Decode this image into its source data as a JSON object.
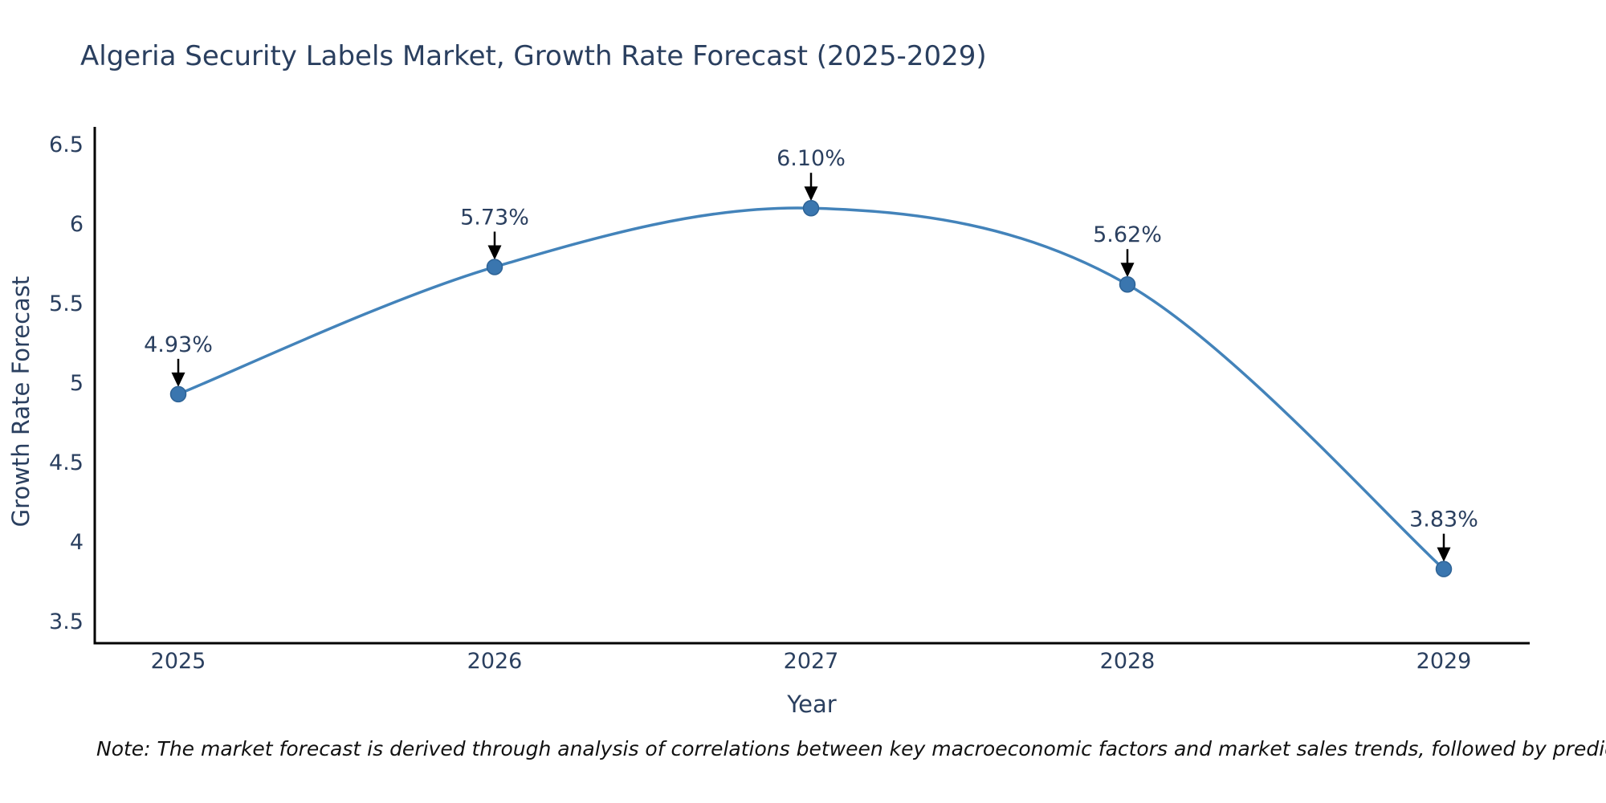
{
  "title": "Algeria Security Labels Market, Growth Rate Forecast (2025-2029)",
  "note": "Note: The market forecast is derived through analysis of correlations between key macroeconomic factors and market sales trends, followed by predictive modeling to project future sales",
  "chart_data": {
    "type": "line",
    "title": "Algeria Security Labels Market, Growth Rate Forecast (2025-2029)",
    "xlabel": "Year",
    "ylabel": "Growth Rate Forecast",
    "x": [
      2025,
      2026,
      2027,
      2028,
      2029
    ],
    "y": [
      4.93,
      5.73,
      6.1,
      5.62,
      3.83
    ],
    "point_labels": [
      "4.93%",
      "5.73%",
      "6.10%",
      "5.62%",
      "3.83%"
    ],
    "xticks": [
      "2025",
      "2026",
      "2027",
      "2028",
      "2029"
    ],
    "yticks": [
      3.5,
      4,
      4.5,
      5,
      5.5,
      6,
      6.5
    ],
    "ylim": [
      3.36,
      6.62
    ],
    "line_shape": "spline",
    "grid": false,
    "legend": "none",
    "annotations_arrow": "down-arrow-to-point",
    "colors": {
      "line": "#4383ba",
      "marker_fill": "#3a76af",
      "marker_edge": "#2e6396",
      "axis_line": "#000000",
      "arrow": "#000000",
      "text": "#2a3f5f",
      "note_text": "#111111",
      "background": "#ffffff"
    }
  }
}
